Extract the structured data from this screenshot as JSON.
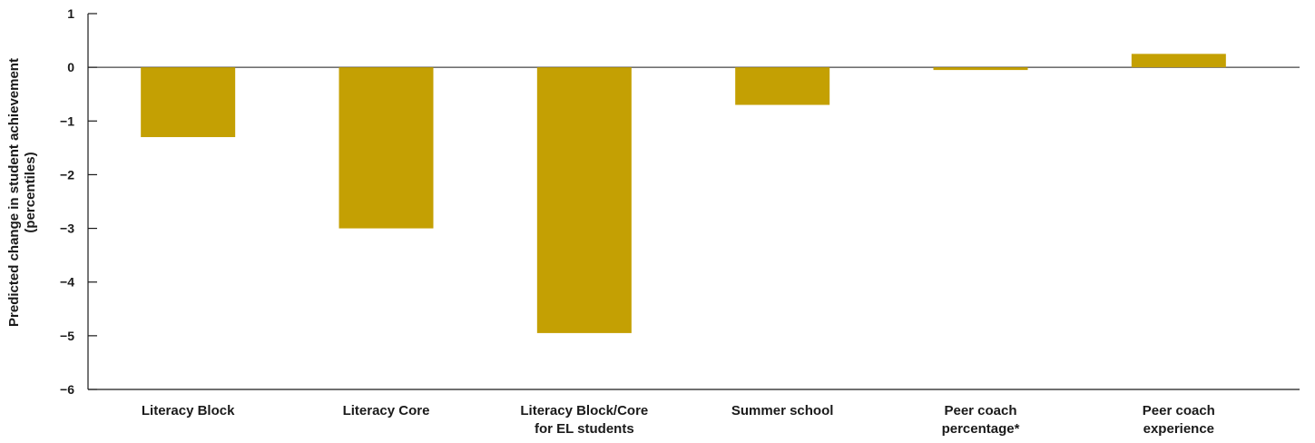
{
  "chart_data": {
    "type": "bar",
    "categories": [
      [
        "Literacy Block"
      ],
      [
        "Literacy Core"
      ],
      [
        "Literacy Block/Core",
        "for EL students"
      ],
      [
        "Summer school"
      ],
      [
        "Peer coach",
        "percentage*"
      ],
      [
        "Peer coach",
        "experience"
      ]
    ],
    "values": [
      -1.3,
      -3.0,
      -4.95,
      -0.7,
      -0.05,
      0.25
    ],
    "ylabel": [
      "Predicted change in student achievement",
      "(percentiles)"
    ],
    "ylim": [
      -6,
      1
    ],
    "yticks": [
      1,
      0,
      -1,
      -2,
      -3,
      -4,
      -5,
      -6
    ],
    "ytick_labels": [
      "1",
      "0",
      "−1",
      "−2",
      "−3",
      "−4",
      "−5",
      "−6"
    ],
    "bar_color": "#c4a003",
    "grid": false
  }
}
